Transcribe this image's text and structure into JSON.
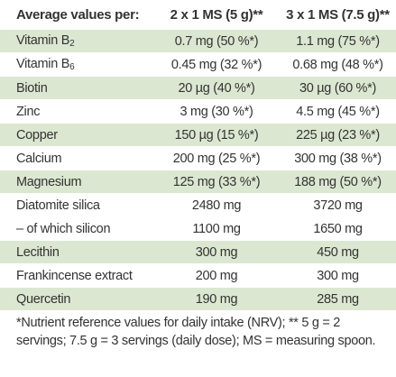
{
  "table": {
    "header": [
      "Average values per:",
      "2 x 1 MS (5 g)**",
      "3 x 1 MS (7.5 g)**"
    ],
    "rows": [
      [
        {
          "label": "Vitamin B",
          "sub": "2"
        },
        "0.7 mg (50 %*)",
        "1.1 mg (75 %*)"
      ],
      [
        {
          "label": "Vitamin B",
          "sub": "6"
        },
        "0.45 mg (32 %*)",
        "0.68 mg (48 %*)"
      ],
      [
        "Biotin",
        "20 µg (40 %*)",
        "30 µg (60 %*)"
      ],
      [
        "Zinc",
        "3 mg (30 %*)",
        "4.5 mg (45 %*)"
      ],
      [
        "Copper",
        "150 µg (15 %*)",
        "225 µg (23 %*)"
      ],
      [
        "Calcium",
        "200 mg (25 %*)",
        "300 mg (38 %*)"
      ],
      [
        "Magnesium",
        "125 mg (33 %*)",
        "188 mg (50 %*)"
      ],
      [
        "Diatomite silica",
        "2480 mg",
        "3720 mg"
      ],
      [
        "– of which silicon",
        "1100 mg",
        "1650 mg"
      ],
      [
        "Lecithin",
        "300 mg",
        "450 mg"
      ],
      [
        "Frankincense extract",
        "200 mg",
        "300 mg"
      ],
      [
        "Quercetin",
        "190 mg",
        "285 mg"
      ]
    ]
  },
  "footnote": "*Nutrient reference values for daily intake (NRV); ** 5 g = 2 servings; 7.5 g = 3 servings (daily dose); MS = measuring spoon."
}
